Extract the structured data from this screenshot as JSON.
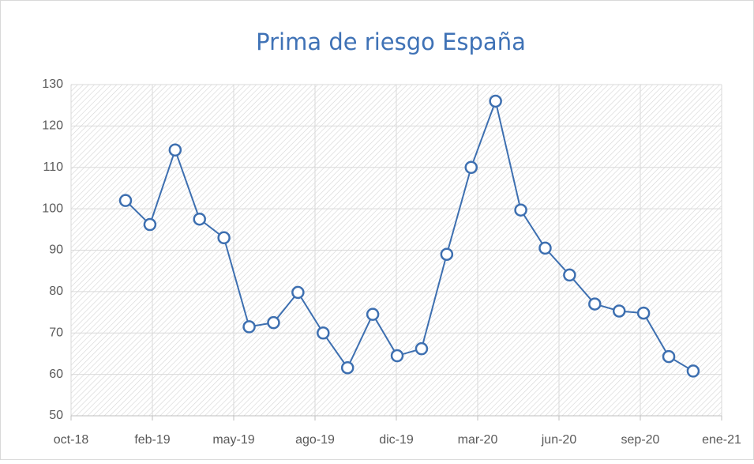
{
  "chart_data": {
    "type": "line",
    "title": "Prima de riesgo España",
    "x": [
      0.67,
      0.97,
      1.28,
      1.58,
      1.88,
      2.19,
      2.49,
      2.79,
      3.1,
      3.4,
      3.71,
      4.01,
      4.31,
      4.62,
      4.92,
      5.22,
      5.53,
      5.83,
      6.13,
      6.44,
      6.74,
      7.04,
      7.35,
      7.65
    ],
    "series": [
      {
        "name": "Prima de riesgo España",
        "color": "#3d6fb0",
        "values": [
          102,
          96.2,
          114.2,
          97.5,
          93,
          71.5,
          72.5,
          79.8,
          70,
          61.6,
          74.5,
          64.5,
          66.2,
          89,
          110,
          126,
          99.7,
          90.5,
          84,
          77,
          75.3,
          74.8,
          64.3,
          60.8
        ]
      }
    ],
    "xlim": [
      0,
      8
    ],
    "xticks": [
      {
        "value": 0,
        "label": "oct-18"
      },
      {
        "value": 1,
        "label": "feb-19"
      },
      {
        "value": 2,
        "label": "may-19"
      },
      {
        "value": 3,
        "label": "ago-19"
      },
      {
        "value": 4,
        "label": "dic-19"
      },
      {
        "value": 5,
        "label": "mar-20"
      },
      {
        "value": 6,
        "label": "jun-20"
      },
      {
        "value": 7,
        "label": "sep-20"
      },
      {
        "value": 8,
        "label": "ene-21"
      }
    ],
    "ylim": [
      50,
      130
    ],
    "yticks": [
      50,
      60,
      70,
      80,
      90,
      100,
      110,
      120,
      130
    ],
    "grid": true
  }
}
